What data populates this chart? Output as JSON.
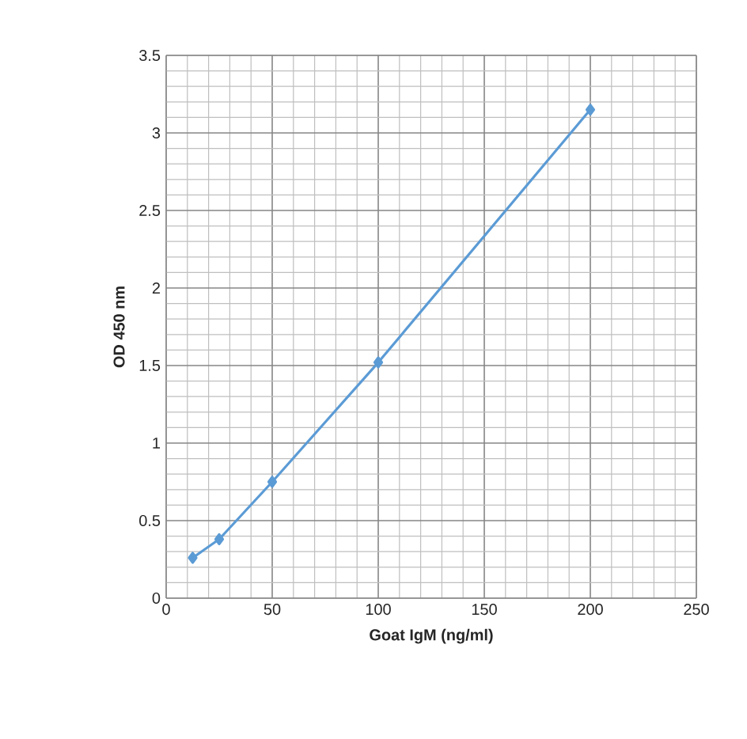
{
  "chart_data": {
    "type": "line",
    "xlabel": "Goat IgM (ng/ml)",
    "ylabel": "OD 450 nm",
    "x": [
      12.5,
      25,
      50,
      100,
      200
    ],
    "series": [
      {
        "color": "#5b9bd5",
        "values": [
          0.26,
          0.38,
          0.75,
          1.52,
          3.15
        ]
      }
    ],
    "xlim": [
      0,
      250
    ],
    "xticks": [
      0,
      50,
      100,
      150,
      200,
      250
    ],
    "ylim": [
      0,
      3.5
    ],
    "yticks": [
      0,
      {
        "value": 0.5,
        "label": "0.5"
      },
      1,
      {
        "value": 1.5,
        "label": "1.5"
      },
      2,
      {
        "value": 2.5,
        "label": "2.5"
      },
      3,
      {
        "value": 3.5,
        "label": "3.5"
      }
    ],
    "grid": true,
    "marker": "diamond",
    "line_style": "solid"
  }
}
